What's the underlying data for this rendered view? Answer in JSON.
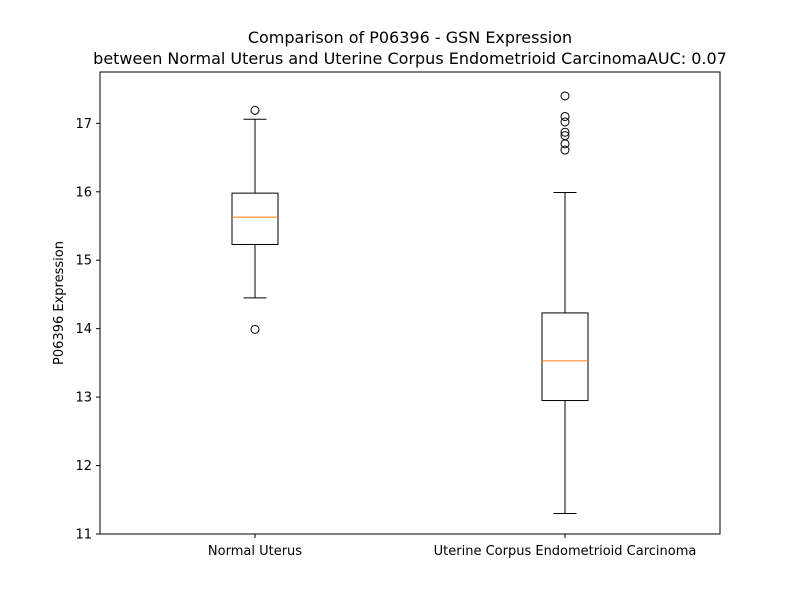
{
  "chart_data": {
    "type": "box",
    "title_line1": "Comparison of P06396 - GSN Expression",
    "title_line2": "between Normal Uterus and Uterine Corpus Endometrioid CarcinomaAUC: 0.07",
    "ylabel": "P06396 Expression",
    "xlabel": "",
    "ylim": [
      11,
      17.75
    ],
    "yticks": [
      "11",
      "12",
      "13",
      "14",
      "15",
      "16",
      "17"
    ],
    "categories": [
      "Normal Uterus",
      "Uterine Corpus Endometrioid Carcinoma"
    ],
    "boxes": [
      {
        "category": "Normal Uterus",
        "whisker_low": 14.45,
        "q1": 15.23,
        "median": 15.63,
        "q3": 15.98,
        "whisker_high": 17.06,
        "outliers": [
          17.19,
          13.99
        ]
      },
      {
        "category": "Uterine Corpus Endometrioid Carcinoma",
        "whisker_low": 11.3,
        "q1": 12.95,
        "median": 13.53,
        "q3": 14.23,
        "whisker_high": 15.99,
        "outliers": [
          17.4,
          17.1,
          17.02,
          16.87,
          16.82,
          16.7,
          16.61
        ]
      }
    ],
    "grid": false,
    "colors": {
      "box": "#000000",
      "median": "#ff7f0e",
      "background": "#ffffff"
    }
  }
}
